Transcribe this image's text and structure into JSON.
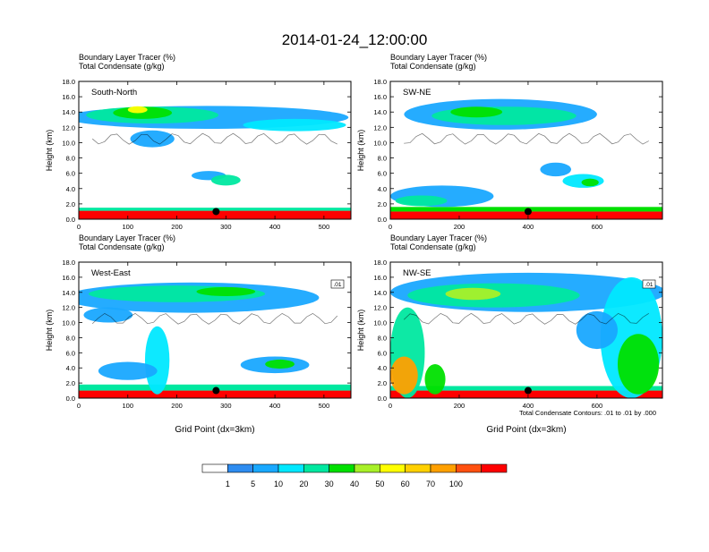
{
  "figure": {
    "title": "2014-01-24_12:00:00",
    "footnote": "Total Condensate Contours: .01 to .01 by .000"
  },
  "colorbar": {
    "colors": [
      "#ffffff",
      "#2e8cf0",
      "#19a8ff",
      "#00e8ff",
      "#00e8a0",
      "#00e000",
      "#a8f028",
      "#ffff00",
      "#ffd000",
      "#ffa000",
      "#ff5010",
      "#ff0000"
    ],
    "labels": [
      "1",
      "5",
      "10",
      "20",
      "30",
      "40",
      "50",
      "60",
      "70",
      "100"
    ]
  },
  "chart_data": [
    {
      "type": "heatmap",
      "panel": "top-left",
      "title_line1": "Boundary Layer Tracer   (%)",
      "title_line2": "Total Condensate   (g/kg)",
      "section_label": "South-North",
      "ylabel": "Height (km)",
      "xlabel": "",
      "xlim": [
        0,
        555
      ],
      "ylim": [
        0,
        18
      ],
      "xticks": [
        0,
        100,
        200,
        300,
        400,
        500
      ],
      "yticks": [
        0.0,
        2.0,
        4.0,
        6.0,
        8.0,
        10.0,
        12.0,
        14.0,
        16.0,
        18.0
      ],
      "marker": {
        "x": 280,
        "y": 1.0
      },
      "features": [
        {
          "kind": "surface",
          "x0": 0,
          "x1": 555,
          "y0": 0,
          "y1": 1.1,
          "level": 11
        },
        {
          "kind": "surface",
          "x0": 0,
          "x1": 555,
          "y0": 1.1,
          "y1": 1.5,
          "level": 4
        },
        {
          "kind": "blob",
          "x": 260,
          "y": 13.3,
          "w": 580,
          "h": 3.0,
          "level": 2
        },
        {
          "kind": "blob",
          "x": 150,
          "y": 13.6,
          "w": 270,
          "h": 2.2,
          "level": 4
        },
        {
          "kind": "blob",
          "x": 130,
          "y": 13.9,
          "w": 120,
          "h": 1.6,
          "level": 5
        },
        {
          "kind": "blob",
          "x": 120,
          "y": 14.3,
          "w": 40,
          "h": 0.9,
          "level": 7
        },
        {
          "kind": "blob",
          "x": 440,
          "y": 12.3,
          "w": 210,
          "h": 1.6,
          "level": 3
        },
        {
          "kind": "blob",
          "x": 150,
          "y": 10.5,
          "w": 90,
          "h": 2.2,
          "level": 2
        },
        {
          "kind": "blob",
          "x": 265,
          "y": 5.7,
          "w": 70,
          "h": 1.2,
          "level": 2
        },
        {
          "kind": "blob",
          "x": 300,
          "y": 5.1,
          "w": 60,
          "h": 1.4,
          "level": 4
        }
      ]
    },
    {
      "type": "heatmap",
      "panel": "top-right",
      "title_line1": "Boundary Layer Tracer   (%)",
      "title_line2": "Total Condensate   (g/kg)",
      "section_label": "SW-NE",
      "ylabel": "Height (km)",
      "xlabel": "",
      "xlim": [
        0,
        790
      ],
      "ylim": [
        0,
        18
      ],
      "xticks": [
        0,
        200,
        400,
        600
      ],
      "yticks": [
        0.0,
        2.0,
        4.0,
        6.0,
        8.0,
        10.0,
        12.0,
        14.0,
        16.0,
        18.0
      ],
      "marker": {
        "x": 400,
        "y": 1.0
      },
      "features": [
        {
          "kind": "surface",
          "x0": 0,
          "x1": 790,
          "y0": 0,
          "y1": 1.0,
          "level": 11
        },
        {
          "kind": "surface",
          "x0": 0,
          "x1": 790,
          "y0": 1.0,
          "y1": 1.6,
          "level": 5
        },
        {
          "kind": "blob",
          "x": 150,
          "y": 3.0,
          "w": 300,
          "h": 2.8,
          "level": 2
        },
        {
          "kind": "blob",
          "x": 90,
          "y": 2.4,
          "w": 150,
          "h": 1.4,
          "level": 4
        },
        {
          "kind": "blob",
          "x": 320,
          "y": 13.7,
          "w": 560,
          "h": 4.0,
          "level": 2
        },
        {
          "kind": "blob",
          "x": 330,
          "y": 13.5,
          "w": 420,
          "h": 2.4,
          "level": 4
        },
        {
          "kind": "blob",
          "x": 250,
          "y": 14.0,
          "w": 150,
          "h": 1.4,
          "level": 5
        },
        {
          "kind": "blob",
          "x": 480,
          "y": 6.5,
          "w": 90,
          "h": 1.8,
          "level": 2
        },
        {
          "kind": "blob",
          "x": 560,
          "y": 5.0,
          "w": 120,
          "h": 1.8,
          "level": 3
        },
        {
          "kind": "blob",
          "x": 580,
          "y": 4.8,
          "w": 50,
          "h": 1.0,
          "level": 5
        }
      ]
    },
    {
      "type": "heatmap",
      "panel": "bottom-left",
      "title_line1": "Boundary Layer Tracer   (%)",
      "title_line2": "Total Condensate   (g/kg)",
      "section_label": "West-East",
      "ylabel": "Height (km)",
      "xlabel": "Grid Point (dx=3km)",
      "xlim": [
        0,
        555
      ],
      "ylim": [
        0,
        18
      ],
      "xticks": [
        0,
        100,
        200,
        300,
        400,
        500
      ],
      "yticks": [
        0.0,
        2.0,
        4.0,
        6.0,
        8.0,
        10.0,
        12.0,
        14.0,
        16.0,
        18.0
      ],
      "marker": {
        "x": 280,
        "y": 1.0
      },
      "contour_label": ".01",
      "features": [
        {
          "kind": "surface",
          "x0": 0,
          "x1": 555,
          "y0": 0,
          "y1": 1.0,
          "level": 11
        },
        {
          "kind": "surface",
          "x0": 0,
          "x1": 555,
          "y0": 1.0,
          "y1": 1.8,
          "level": 4
        },
        {
          "kind": "blob",
          "x": 230,
          "y": 13.3,
          "w": 520,
          "h": 4.0,
          "level": 2
        },
        {
          "kind": "blob",
          "x": 200,
          "y": 13.8,
          "w": 360,
          "h": 2.2,
          "level": 4
        },
        {
          "kind": "blob",
          "x": 300,
          "y": 14.1,
          "w": 120,
          "h": 1.2,
          "level": 5
        },
        {
          "kind": "blob",
          "x": 60,
          "y": 11.0,
          "w": 100,
          "h": 2.0,
          "level": 2
        },
        {
          "kind": "blob",
          "x": 160,
          "y": 5.0,
          "w": 50,
          "h": 9.0,
          "level": 3
        },
        {
          "kind": "blob",
          "x": 100,
          "y": 3.6,
          "w": 120,
          "h": 2.4,
          "level": 2
        },
        {
          "kind": "blob",
          "x": 400,
          "y": 4.4,
          "w": 140,
          "h": 2.2,
          "level": 2
        },
        {
          "kind": "blob",
          "x": 410,
          "y": 4.5,
          "w": 60,
          "h": 1.2,
          "level": 5
        }
      ]
    },
    {
      "type": "heatmap",
      "panel": "bottom-right",
      "title_line1": "Boundary Layer Tracer   (%)",
      "title_line2": "Total Condensate   (g/kg)",
      "section_label": "NW-SE",
      "ylabel": "Height (km)",
      "xlabel": "Grid Point (dx=3km)",
      "xlim": [
        0,
        790
      ],
      "ylim": [
        0,
        18
      ],
      "xticks": [
        0,
        200,
        400,
        600
      ],
      "yticks": [
        0.0,
        2.0,
        4.0,
        6.0,
        8.0,
        10.0,
        12.0,
        14.0,
        16.0,
        18.0
      ],
      "marker": {
        "x": 400,
        "y": 1.0
      },
      "contour_label": ".01",
      "features": [
        {
          "kind": "surface",
          "x0": 0,
          "x1": 790,
          "y0": 0,
          "y1": 1.0,
          "level": 11
        },
        {
          "kind": "surface",
          "x0": 0,
          "x1": 790,
          "y0": 1.0,
          "y1": 1.6,
          "level": 4
        },
        {
          "kind": "blob",
          "x": 400,
          "y": 14.0,
          "w": 800,
          "h": 5.2,
          "level": 2
        },
        {
          "kind": "blob",
          "x": 300,
          "y": 13.6,
          "w": 500,
          "h": 3.2,
          "level": 4
        },
        {
          "kind": "blob",
          "x": 240,
          "y": 13.8,
          "w": 160,
          "h": 1.6,
          "level": 6
        },
        {
          "kind": "blob",
          "x": 50,
          "y": 6.0,
          "w": 100,
          "h": 12.0,
          "level": 4
        },
        {
          "kind": "blob",
          "x": 40,
          "y": 3.0,
          "w": 80,
          "h": 5.0,
          "level": 9
        },
        {
          "kind": "blob",
          "x": 130,
          "y": 2.5,
          "w": 60,
          "h": 4.0,
          "level": 5
        },
        {
          "kind": "blob",
          "x": 700,
          "y": 8.0,
          "w": 180,
          "h": 16.0,
          "level": 3
        },
        {
          "kind": "blob",
          "x": 720,
          "y": 4.5,
          "w": 120,
          "h": 8.0,
          "level": 5
        },
        {
          "kind": "blob",
          "x": 600,
          "y": 9.0,
          "w": 120,
          "h": 5.0,
          "level": 2
        }
      ]
    }
  ]
}
